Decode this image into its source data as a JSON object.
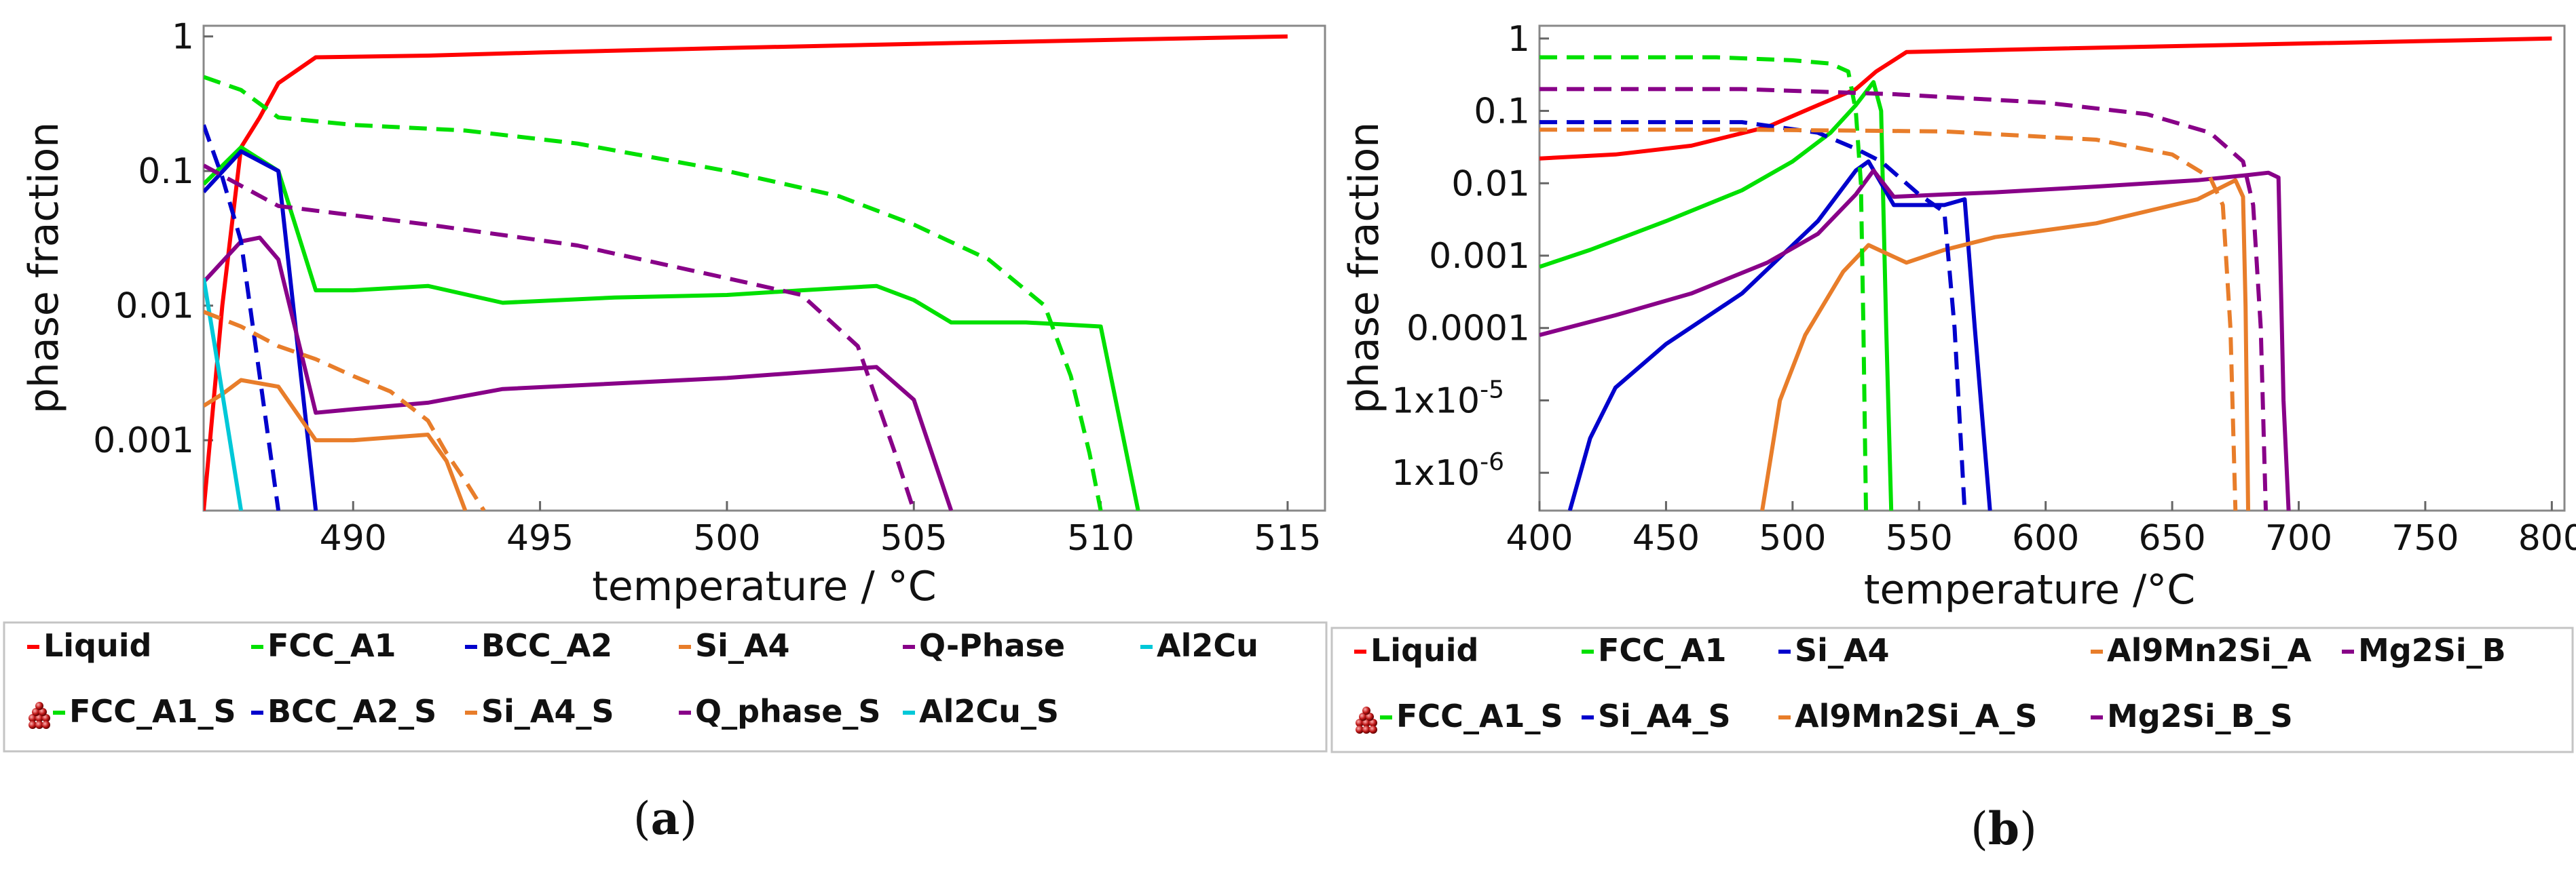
{
  "chart_data": [
    {
      "type": "line",
      "panel_label": "a",
      "caption": {
        "open": "(",
        "letter": "a",
        "close": ")"
      },
      "xlabel": "temperature / °C",
      "ylabel": "phase fraction",
      "yscale": "log",
      "xlim": [
        486,
        516
      ],
      "ylim": [
        0.0003,
        1.2
      ],
      "x_ticks": [
        490,
        495,
        500,
        505,
        510,
        515
      ],
      "x_tick_labels": [
        "490",
        "495",
        "500",
        "505",
        "510",
        "515"
      ],
      "y_ticks": [
        1,
        0.1,
        0.01,
        0.001
      ],
      "y_tick_labels": [
        "1",
        "0.1",
        "0.01",
        "0.001"
      ],
      "series": [
        {
          "name": "Liquid",
          "color": "#ff0000",
          "dash": false,
          "points": [
            [
              486.0,
              0.0003
            ],
            [
              486.5,
              0.01
            ],
            [
              487.0,
              0.15
            ],
            [
              487.5,
              0.25
            ],
            [
              488.0,
              0.45
            ],
            [
              489.0,
              0.7
            ],
            [
              492.0,
              0.72
            ],
            [
              495.0,
              0.76
            ],
            [
              500.0,
              0.82
            ],
            [
              505.0,
              0.88
            ],
            [
              510.0,
              0.94
            ],
            [
              515.0,
              1.0
            ]
          ]
        },
        {
          "name": "FCC_A1",
          "color": "#00e000",
          "dash": false,
          "points": [
            [
              486.0,
              0.08
            ],
            [
              487.0,
              0.15
            ],
            [
              488.0,
              0.1
            ],
            [
              489.0,
              0.013
            ],
            [
              490.0,
              0.013
            ],
            [
              492.0,
              0.014
            ],
            [
              494.0,
              0.0105
            ],
            [
              497.0,
              0.0115
            ],
            [
              500.0,
              0.012
            ],
            [
              502.0,
              0.013
            ],
            [
              504.0,
              0.014
            ],
            [
              505.0,
              0.011
            ],
            [
              506.0,
              0.0075
            ],
            [
              508.0,
              0.0075
            ],
            [
              510.0,
              0.007
            ],
            [
              511.0,
              0.0003
            ]
          ]
        },
        {
          "name": "BCC_A2",
          "color": "#0000cc",
          "dash": false,
          "points": [
            [
              486.0,
              0.07
            ],
            [
              487.0,
              0.14
            ],
            [
              488.0,
              0.1
            ],
            [
              489.0,
              0.0003
            ]
          ]
        },
        {
          "name": "Si_A4",
          "color": "#e87d2a",
          "dash": false,
          "points": [
            [
              486.0,
              0.0018
            ],
            [
              486.5,
              0.0022
            ],
            [
              487.0,
              0.0028
            ],
            [
              488.0,
              0.0025
            ],
            [
              489.0,
              0.001
            ],
            [
              490.0,
              0.001
            ],
            [
              492.0,
              0.0011
            ],
            [
              492.5,
              0.0007
            ],
            [
              493.0,
              0.0003
            ]
          ]
        },
        {
          "name": "Q-Phase",
          "color": "#880088",
          "dash": false,
          "points": [
            [
              486.0,
              0.015
            ],
            [
              487.0,
              0.03
            ],
            [
              487.5,
              0.032
            ],
            [
              488.0,
              0.022
            ],
            [
              489.0,
              0.0016
            ],
            [
              490.0,
              0.0017
            ],
            [
              492.0,
              0.0019
            ],
            [
              494.0,
              0.0024
            ],
            [
              500.0,
              0.0029
            ],
            [
              504.0,
              0.0035
            ],
            [
              505.0,
              0.002
            ],
            [
              506.0,
              0.0003
            ]
          ]
        },
        {
          "name": "Al2Cu",
          "color": "#00c8d8",
          "dash": false,
          "points": [
            [
              486.0,
              0.016
            ],
            [
              486.3,
              0.005
            ],
            [
              487.0,
              0.0003
            ]
          ]
        },
        {
          "name": "FCC_A1_S",
          "color": "#00e000",
          "dash": true,
          "points": [
            [
              486.0,
              0.5
            ],
            [
              487.0,
              0.4
            ],
            [
              488.0,
              0.25
            ],
            [
              490.0,
              0.22
            ],
            [
              493.0,
              0.2
            ],
            [
              496.0,
              0.16
            ],
            [
              500.0,
              0.1
            ],
            [
              503.0,
              0.065
            ],
            [
              505.0,
              0.04
            ],
            [
              507.0,
              0.022
            ],
            [
              508.5,
              0.01
            ],
            [
              509.2,
              0.003
            ],
            [
              509.7,
              0.0008
            ],
            [
              510.0,
              0.0003
            ]
          ]
        },
        {
          "name": "BCC_A2_S",
          "color": "#0000cc",
          "dash": true,
          "points": [
            [
              486.0,
              0.22
            ],
            [
              486.5,
              0.09
            ],
            [
              487.0,
              0.03
            ],
            [
              487.5,
              0.003
            ],
            [
              488.0,
              0.0003
            ]
          ]
        },
        {
          "name": "Si_A4_S",
          "color": "#e87d2a",
          "dash": true,
          "points": [
            [
              486.0,
              0.009
            ],
            [
              487.0,
              0.007
            ],
            [
              488.0,
              0.005
            ],
            [
              489.0,
              0.004
            ],
            [
              490.0,
              0.003
            ],
            [
              491.0,
              0.0023
            ],
            [
              492.0,
              0.0014
            ],
            [
              492.5,
              0.0008
            ],
            [
              493.0,
              0.0005
            ],
            [
              493.5,
              0.0003
            ]
          ]
        },
        {
          "name": "Q_phase_S",
          "color": "#880088",
          "dash": true,
          "points": [
            [
              486.0,
              0.11
            ],
            [
              488.0,
              0.055
            ],
            [
              492.0,
              0.04
            ],
            [
              496.0,
              0.028
            ],
            [
              500.0,
              0.016
            ],
            [
              502.0,
              0.012
            ],
            [
              503.5,
              0.005
            ],
            [
              504.0,
              0.002
            ],
            [
              504.5,
              0.0008
            ],
            [
              505.0,
              0.0003
            ]
          ]
        },
        {
          "name": "Al2Cu_S",
          "color": "#00c8d8",
          "dash": true,
          "points": []
        }
      ],
      "legend": {
        "rows": [
          [
            "Liquid",
            "FCC_A1",
            "BCC_A2",
            "Si_A4",
            "Q-Phase",
            "Al2Cu"
          ],
          [
            "FCC_A1_S",
            "BCC_A2_S",
            "Si_A4_S",
            "Q_phase_S",
            "Al2Cu_S"
          ]
        ]
      }
    },
    {
      "type": "line",
      "panel_label": "b",
      "caption": {
        "open": "(",
        "letter": "b",
        "close": ")"
      },
      "xlabel": "temperature /°C",
      "ylabel": "phase fraction",
      "yscale": "log",
      "xlim": [
        400,
        805
      ],
      "ylim": [
        3e-07,
        1.5
      ],
      "x_ticks": [
        400,
        450,
        500,
        550,
        600,
        650,
        700,
        750,
        800
      ],
      "x_tick_labels": [
        "400",
        "450",
        "500",
        "550",
        "600",
        "650",
        "700",
        "750",
        "800"
      ],
      "y_ticks": [
        1,
        0.1,
        0.01,
        0.001,
        0.0001,
        1e-05,
        1e-06
      ],
      "y_tick_labels": [
        "1",
        "0.1",
        "0.01",
        "0.001",
        "0.0001",
        "1x10",
        "1x10"
      ],
      "y_tick_exponents": [
        "",
        "",
        "",
        "",
        "",
        "-5",
        "-6"
      ],
      "series": [
        {
          "name": "Liquid",
          "color": "#ff0000",
          "dash": false,
          "points": [
            [
              400,
              0.022
            ],
            [
              430,
              0.025
            ],
            [
              460,
              0.033
            ],
            [
              490,
              0.06
            ],
            [
              510,
              0.12
            ],
            [
              525,
              0.2
            ],
            [
              533,
              0.35
            ],
            [
              545,
              0.65
            ],
            [
              600,
              0.72
            ],
            [
              700,
              0.85
            ],
            [
              800,
              1.0
            ]
          ]
        },
        {
          "name": "FCC_A1",
          "color": "#00e000",
          "dash": false,
          "points": [
            [
              400,
              0.0007
            ],
            [
              420,
              0.0012
            ],
            [
              450,
              0.003
            ],
            [
              480,
              0.008
            ],
            [
              500,
              0.02
            ],
            [
              515,
              0.05
            ],
            [
              525,
              0.12
            ],
            [
              532,
              0.25
            ],
            [
              535,
              0.1
            ],
            [
              537,
              0.0001
            ],
            [
              539,
              3e-07
            ]
          ]
        },
        {
          "name": "Si_A4",
          "color": "#0000cc",
          "dash": false,
          "points": [
            [
              412,
              3e-07
            ],
            [
              420,
              3e-06
            ],
            [
              430,
              1.5e-05
            ],
            [
              450,
              6e-05
            ],
            [
              480,
              0.0003
            ],
            [
              510,
              0.003
            ],
            [
              525,
              0.015
            ],
            [
              530,
              0.02
            ],
            [
              540,
              0.005
            ],
            [
              560,
              0.005
            ],
            [
              568,
              0.006
            ],
            [
              572,
              0.0001
            ],
            [
              578,
              3e-07
            ]
          ]
        },
        {
          "name": "Al9Mn2Si_A",
          "color": "#e87d2a",
          "dash": false,
          "points": [
            [
              488,
              3e-07
            ],
            [
              495,
              1e-05
            ],
            [
              505,
              8e-05
            ],
            [
              520,
              0.0006
            ],
            [
              530,
              0.0014
            ],
            [
              545,
              0.0008
            ],
            [
              560,
              0.0012
            ],
            [
              580,
              0.0018
            ],
            [
              620,
              0.0028
            ],
            [
              660,
              0.006
            ],
            [
              675,
              0.011
            ],
            [
              678,
              0.0065
            ],
            [
              679,
              0.0002
            ],
            [
              680,
              3e-07
            ]
          ]
        },
        {
          "name": "Mg2Si_B",
          "color": "#880088",
          "dash": false,
          "points": [
            [
              400,
              8e-05
            ],
            [
              430,
              0.00015
            ],
            [
              460,
              0.0003
            ],
            [
              490,
              0.0008
            ],
            [
              510,
              0.002
            ],
            [
              525,
              0.007
            ],
            [
              532,
              0.015
            ],
            [
              540,
              0.0065
            ],
            [
              560,
              0.007
            ],
            [
              580,
              0.0075
            ],
            [
              620,
              0.009
            ],
            [
              660,
              0.011
            ],
            [
              680,
              0.013
            ],
            [
              688,
              0.014
            ],
            [
              692,
              0.012
            ],
            [
              694,
              1e-05
            ],
            [
              696,
              3e-07
            ]
          ]
        },
        {
          "name": "FCC_A1_S",
          "color": "#00e000",
          "dash": true,
          "points": [
            [
              400,
              0.55
            ],
            [
              470,
              0.55
            ],
            [
              500,
              0.5
            ],
            [
              515,
              0.45
            ],
            [
              522,
              0.35
            ],
            [
              525,
              0.1
            ],
            [
              527,
              0.01
            ],
            [
              528,
              0.0001
            ],
            [
              529,
              3e-07
            ]
          ]
        },
        {
          "name": "Si_A4_S",
          "color": "#0000cc",
          "dash": true,
          "points": [
            [
              400,
              0.07
            ],
            [
              480,
              0.07
            ],
            [
              510,
              0.05
            ],
            [
              525,
              0.03
            ],
            [
              535,
              0.02
            ],
            [
              550,
              0.007
            ],
            [
              560,
              0.004
            ],
            [
              564,
              0.0001
            ],
            [
              568,
              3e-07
            ]
          ]
        },
        {
          "name": "Al9Mn2Si_A_S",
          "color": "#e87d2a",
          "dash": true,
          "points": [
            [
              400,
              0.055
            ],
            [
              480,
              0.055
            ],
            [
              560,
              0.052
            ],
            [
              620,
              0.04
            ],
            [
              650,
              0.025
            ],
            [
              665,
              0.012
            ],
            [
              670,
              0.005
            ],
            [
              673,
              0.0001
            ],
            [
              675,
              3e-07
            ]
          ]
        },
        {
          "name": "Mg2Si_B_S",
          "color": "#880088",
          "dash": true,
          "points": [
            [
              400,
              0.2
            ],
            [
              480,
              0.2
            ],
            [
              540,
              0.17
            ],
            [
              600,
              0.13
            ],
            [
              640,
              0.09
            ],
            [
              665,
              0.05
            ],
            [
              678,
              0.02
            ],
            [
              682,
              0.005
            ],
            [
              685,
              0.0001
            ],
            [
              687,
              3e-07
            ]
          ]
        }
      ],
      "legend": {
        "rows": [
          [
            "Liquid",
            "FCC_A1",
            "Si_A4",
            "Al9Mn2Si_A",
            "Mg2Si_B"
          ],
          [
            "FCC_A1_S",
            "Si_A4_S",
            "Al9Mn2Si_A_S",
            "Mg2Si_B_S"
          ]
        ]
      }
    }
  ],
  "legend_colors": {
    "Liquid": "#ff0000",
    "FCC_A1": "#00e000",
    "BCC_A2": "#0000cc",
    "Si_A4": "#e87d2a",
    "Q-Phase": "#880088",
    "Al2Cu": "#00c8d8",
    "FCC_A1_S": "#00e000",
    "BCC_A2_S": "#0000cc",
    "Si_A4_S": "#e87d2a",
    "Q_phase_S": "#880088",
    "Al2Cu_S": "#00c8d8",
    "Al9Mn2Si_A": "#e87d2a",
    "Mg2Si_B": "#880088",
    "Al9Mn2Si_A_S": "#e87d2a",
    "Mg2Si_B_S": "#880088"
  },
  "legend_icon": "stacked-spheres-icon"
}
